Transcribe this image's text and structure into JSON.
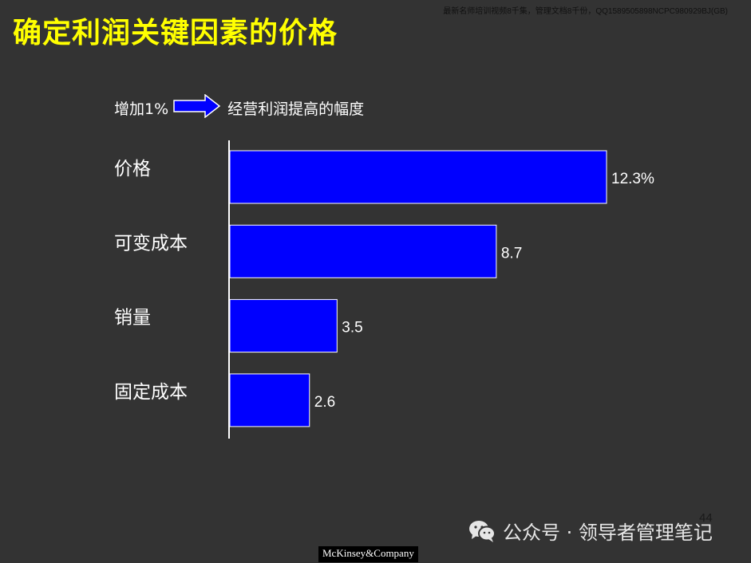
{
  "header": {
    "note": "最新名师培训视频8千集，管理文档8千份，QQ1589505898NCPC980929BJ(GB)",
    "title": "确定利润关键因素的价格"
  },
  "legend": {
    "left_text": "增加1%",
    "arrow_icon": "right-arrow-icon",
    "right_text": "经营利润提高的幅度"
  },
  "chart_data": {
    "type": "bar",
    "orientation": "horizontal",
    "categories": [
      "价格",
      "可变成本",
      "销量",
      "固定成本"
    ],
    "values": [
      12.3,
      8.7,
      3.5,
      2.6
    ],
    "value_labels": [
      "12.3%",
      "8.7",
      "3.5",
      "2.6"
    ],
    "title": "",
    "xlabel": "",
    "ylabel": "",
    "xlim": [
      0,
      12.3
    ],
    "grid": false,
    "bar_color": "#0000ff",
    "bar_edge_color": "#ffffff",
    "text_color": "#ffffff"
  },
  "footer": {
    "page_number": "44",
    "wechat_icon": "wechat-icon",
    "wechat_text": "公众号 · 领导者管理笔记",
    "logo_text": "McKinsey&Company"
  },
  "colors": {
    "background": "#333333",
    "title": "#ffff00",
    "bar": "#0000ff",
    "text": "#ffffff"
  }
}
